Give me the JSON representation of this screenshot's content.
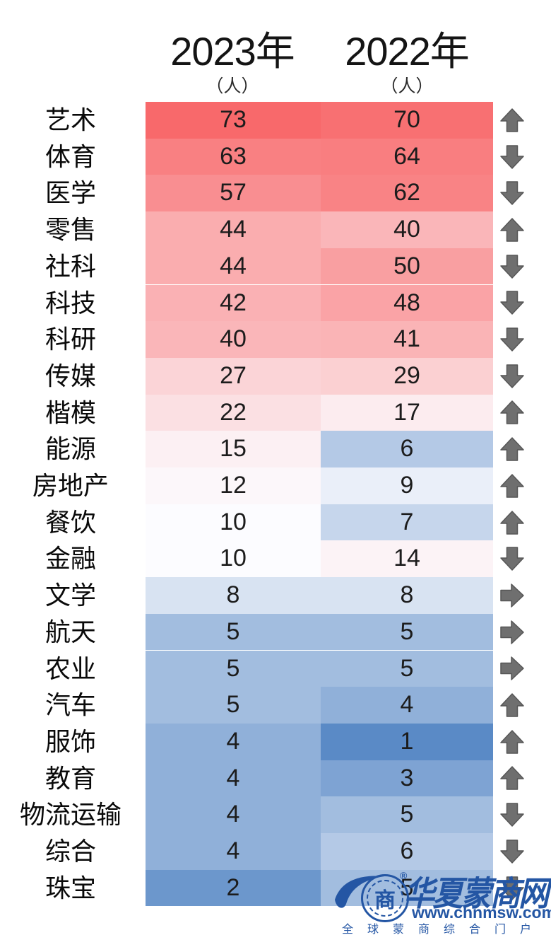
{
  "chart_data": {
    "type": "heatmap",
    "columns": [
      "2023年",
      "2022年"
    ],
    "unit": "（人）",
    "categories": [
      "艺术",
      "体育",
      "医学",
      "零售",
      "社科",
      "科技",
      "科研",
      "传媒",
      "楷模",
      "能源",
      "房地产",
      "餐饮",
      "金融",
      "文学",
      "航天",
      "农业",
      "汽车",
      "服饰",
      "教育",
      "物流运输",
      "综合",
      "珠宝"
    ],
    "series": [
      {
        "name": "2023年",
        "key": "2023",
        "values": [
          73,
          63,
          57,
          44,
          44,
          42,
          40,
          27,
          22,
          15,
          12,
          10,
          10,
          8,
          5,
          5,
          5,
          4,
          4,
          4,
          4,
          2
        ]
      },
      {
        "name": "2022年",
        "key": "2022",
        "values": [
          70,
          64,
          62,
          40,
          50,
          48,
          41,
          29,
          17,
          6,
          9,
          7,
          14,
          8,
          5,
          5,
          4,
          1,
          3,
          5,
          6,
          5
        ]
      }
    ],
    "trend": [
      "up",
      "down",
      "down",
      "up",
      "down",
      "down",
      "down",
      "down",
      "up",
      "up",
      "up",
      "up",
      "down",
      "flat",
      "flat",
      "flat",
      "up",
      "up",
      "up",
      "down",
      "down",
      "down"
    ],
    "color_scale": {
      "min_value": 1,
      "mid_value": 10,
      "max_value": 73,
      "min_color": "#5A8AC6",
      "mid_color": "#FCFCFF",
      "max_color": "#F8696B"
    },
    "icon_color": "#6F6F6F",
    "legend_position": "none",
    "grid": false
  },
  "watermark": {
    "logo_char": "商",
    "registered_mark": "®",
    "title": "华夏蒙商网",
    "url": "www.chnmsw.com",
    "slogan": "全球蒙商综合门户",
    "color": "#2456A4"
  }
}
